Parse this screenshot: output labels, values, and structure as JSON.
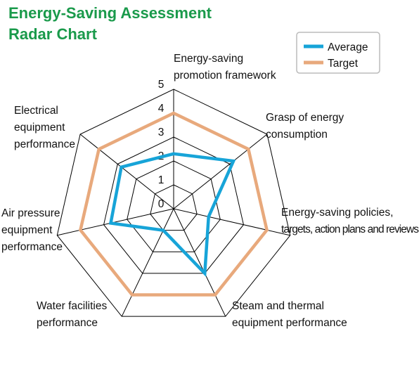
{
  "chart_data": {
    "type": "radar",
    "title": "Energy-Saving Assessment Radar Chart",
    "categories": [
      "Energy-saving\npromotion framework",
      "Grasp of energy\nconsumption",
      "Energy-saving policies,\ntargets, action plans and reviews",
      "Steam and thermal\nequipment performance",
      "Water facilities\nperformance",
      "Air pressure\nequipment\nperformance",
      "Electrical\nequipment\nperformance"
    ],
    "series": [
      {
        "name": "Average",
        "color": "#17a4d8",
        "values": [
          2.3,
          3.2,
          1.5,
          3.0,
          1.0,
          2.7,
          2.8
        ]
      },
      {
        "name": "Target",
        "color": "#e8a97c",
        "values": [
          4,
          4,
          4,
          4,
          4,
          4,
          4
        ]
      }
    ],
    "ylim": [
      0,
      5
    ],
    "yticks": [
      0,
      1,
      2,
      3,
      4,
      5
    ],
    "grid": true,
    "legend": "top-right"
  }
}
